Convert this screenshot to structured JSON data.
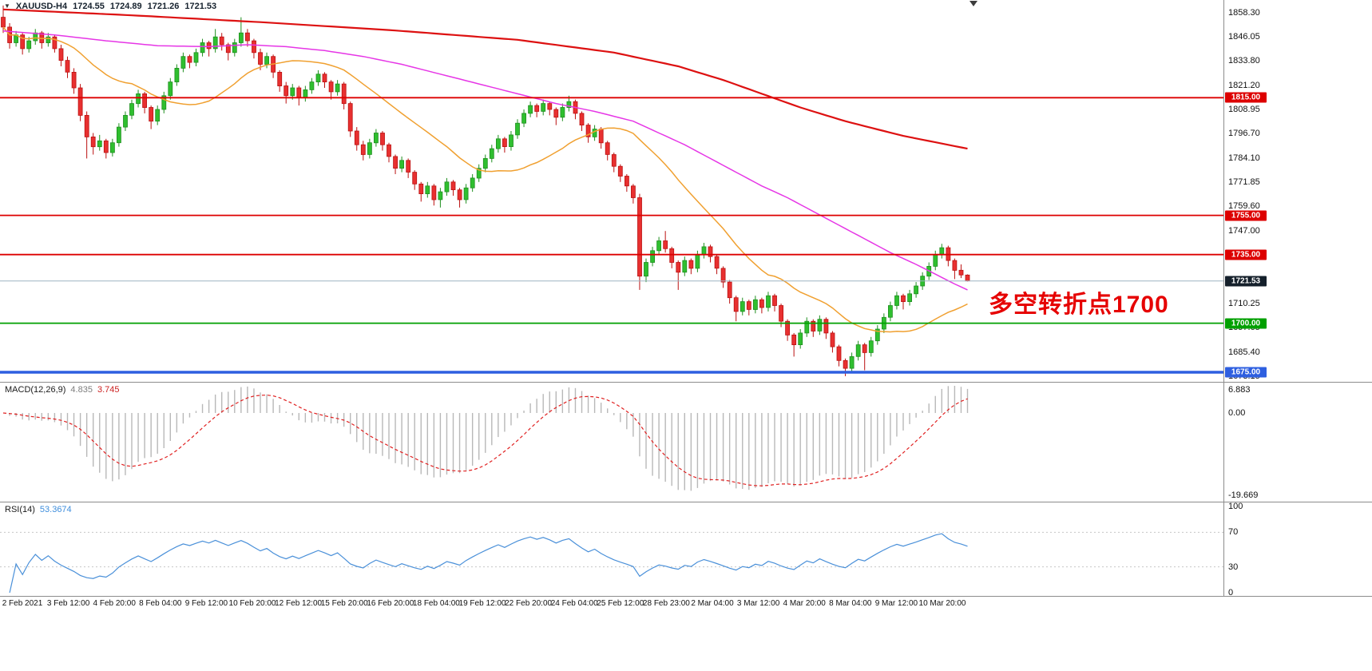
{
  "header": {
    "symbol": "XAUUSD-H4",
    "open": "1724.55",
    "high": "1724.89",
    "low": "1721.26",
    "close": "1721.53"
  },
  "annotation": {
    "text": "多空转折点1700",
    "color": "#e60000"
  },
  "price_axis": {
    "ticks": [
      "1858.30",
      "1846.05",
      "1833.80",
      "1821.20",
      "1808.95",
      "1796.70",
      "1784.10",
      "1771.85",
      "1759.60",
      "1747.00",
      "1710.25",
      "1697.65",
      "1685.40",
      "1673.15"
    ]
  },
  "time_axis": {
    "labels": [
      "2 Feb 2021",
      "3 Feb 12:00",
      "4 Feb 20:00",
      "8 Feb 04:00",
      "9 Feb 12:00",
      "10 Feb 20:00",
      "12 Feb 12:00",
      "15 Feb 20:00",
      "16 Feb 20:00",
      "18 Feb 04:00",
      "19 Feb 12:00",
      "22 Feb 20:00",
      "24 Feb 04:00",
      "25 Feb 12:00",
      "28 Feb 23:00",
      "2 Mar 04:00",
      "3 Mar 12:00",
      "4 Mar 20:00",
      "8 Mar 04:00",
      "9 Mar 12:00",
      "10 Mar 20:00"
    ]
  },
  "chart_data": {
    "type": "candlestick",
    "symbol": "XAUUSD",
    "timeframe": "H4",
    "ylim": [
      1673,
      1865
    ],
    "current_price": {
      "value": 1721.53,
      "label": "1721.53",
      "line_color": "#9db3c2",
      "badge_color": "#15202b"
    },
    "levels": [
      {
        "price": 1815.0,
        "label": "1815.00",
        "color": "#dd0000",
        "line_width": 1.8
      },
      {
        "price": 1755.0,
        "label": "1755.00",
        "color": "#dd0000",
        "line_width": 1.8
      },
      {
        "price": 1735.0,
        "label": "1735.00",
        "color": "#dd0000",
        "line_width": 1.8
      },
      {
        "price": 1700.0,
        "label": "1700.00",
        "color": "#00a000",
        "line_width": 1.8
      },
      {
        "price": 1675.0,
        "label": "1675.00",
        "color": "#2e5fe0",
        "line_width": 3.5
      }
    ],
    "style": {
      "up_fill": "#2fbf2f",
      "up_stroke": "#1f8f1f",
      "down_fill": "#e83030",
      "down_stroke": "#bb1111"
    },
    "moving_averages": {
      "fast": {
        "color": "#f0a030",
        "type": "sma",
        "period": 21
      },
      "mid": {
        "color": "#e636e6",
        "points": [
          [
            0,
            1849
          ],
          [
            8,
            1847
          ],
          [
            16,
            1844
          ],
          [
            24,
            1841.5
          ],
          [
            32,
            1841
          ],
          [
            38,
            1842
          ],
          [
            44,
            1841
          ],
          [
            50,
            1839
          ],
          [
            56,
            1836
          ],
          [
            62,
            1832
          ],
          [
            68,
            1827
          ],
          [
            74,
            1822
          ],
          [
            80,
            1817
          ],
          [
            86,
            1812
          ],
          [
            92,
            1808
          ],
          [
            98,
            1803
          ],
          [
            102,
            1797
          ],
          [
            106,
            1791
          ],
          [
            110,
            1784
          ],
          [
            114,
            1777
          ],
          [
            118,
            1770
          ],
          [
            122,
            1764
          ],
          [
            126,
            1757
          ],
          [
            130,
            1750
          ],
          [
            134,
            1743
          ],
          [
            138,
            1736
          ],
          [
            142,
            1730
          ],
          [
            145,
            1725
          ],
          [
            148,
            1720
          ],
          [
            150,
            1717
          ]
        ]
      },
      "slow": {
        "color": "#dd1111",
        "points": [
          [
            0,
            1860
          ],
          [
            20,
            1857
          ],
          [
            40,
            1853.5
          ],
          [
            60,
            1849.5
          ],
          [
            80,
            1844.5
          ],
          [
            95,
            1838
          ],
          [
            105,
            1831
          ],
          [
            112,
            1824
          ],
          [
            118,
            1817
          ],
          [
            124,
            1810
          ],
          [
            131,
            1803
          ],
          [
            140,
            1795.5
          ],
          [
            150,
            1789
          ]
        ]
      }
    },
    "indicators": {
      "macd": {
        "label": "MACD(12,26,9)",
        "value_main": "4.835",
        "value_signal": "3.745",
        "fast": 12,
        "slow": 26,
        "signal": 9,
        "histogram_color": "#b8b8b8",
        "signal_color": "#e02020",
        "scale": {
          "max": "6.883",
          "zero": "0.00",
          "min": "-19.669"
        }
      },
      "rsi": {
        "label": "RSI(14)",
        "value": "53.3674",
        "period": 14,
        "line_color": "#4a90d9",
        "level_lines": [
          70,
          30
        ],
        "scale": [
          "100",
          "70",
          "30",
          "0"
        ]
      }
    },
    "ohlc": [
      [
        1856,
        1862,
        1848,
        1851
      ],
      [
        1851,
        1853,
        1840,
        1843
      ],
      [
        1843,
        1849,
        1841,
        1847
      ],
      [
        1847,
        1848,
        1837,
        1840
      ],
      [
        1840,
        1846,
        1838,
        1844
      ],
      [
        1844,
        1850,
        1842,
        1848
      ],
      [
        1848,
        1849,
        1840,
        1843
      ],
      [
        1843,
        1848,
        1841,
        1846
      ],
      [
        1846,
        1847,
        1838,
        1840
      ],
      [
        1840,
        1842,
        1831,
        1834
      ],
      [
        1834,
        1836,
        1825,
        1828
      ],
      [
        1828,
        1830,
        1817,
        1820
      ],
      [
        1820,
        1822,
        1803,
        1806
      ],
      [
        1806,
        1808,
        1784,
        1795
      ],
      [
        1795,
        1797,
        1786,
        1790
      ],
      [
        1790,
        1796,
        1788,
        1793
      ],
      [
        1793,
        1794,
        1784,
        1787
      ],
      [
        1787,
        1794,
        1785,
        1792
      ],
      [
        1792,
        1802,
        1790,
        1800
      ],
      [
        1800,
        1808,
        1798,
        1806
      ],
      [
        1806,
        1814,
        1804,
        1812
      ],
      [
        1812,
        1819,
        1810,
        1817
      ],
      [
        1817,
        1818,
        1807,
        1810
      ],
      [
        1810,
        1811,
        1799,
        1803
      ],
      [
        1803,
        1811,
        1801,
        1809
      ],
      [
        1809,
        1818,
        1807,
        1816
      ],
      [
        1816,
        1825,
        1814,
        1823
      ],
      [
        1823,
        1832,
        1821,
        1830
      ],
      [
        1830,
        1838,
        1828,
        1836
      ],
      [
        1836,
        1837,
        1830,
        1833
      ],
      [
        1833,
        1840,
        1831,
        1838
      ],
      [
        1838,
        1845,
        1836,
        1843
      ],
      [
        1843,
        1844,
        1836,
        1840
      ],
      [
        1840,
        1850,
        1838,
        1846
      ],
      [
        1846,
        1848,
        1839,
        1842
      ],
      [
        1842,
        1843,
        1834,
        1838
      ],
      [
        1838,
        1845,
        1836,
        1843
      ],
      [
        1843,
        1856,
        1841,
        1848
      ],
      [
        1848,
        1850,
        1841,
        1844
      ],
      [
        1844,
        1845,
        1835,
        1838
      ],
      [
        1838,
        1840,
        1829,
        1832
      ],
      [
        1832,
        1838,
        1830,
        1836
      ],
      [
        1836,
        1837,
        1825,
        1828
      ],
      [
        1828,
        1829,
        1818,
        1821
      ],
      [
        1821,
        1823,
        1812,
        1816
      ],
      [
        1816,
        1822,
        1814,
        1820
      ],
      [
        1820,
        1821,
        1811,
        1815
      ],
      [
        1815,
        1821,
        1813,
        1819
      ],
      [
        1819,
        1825,
        1817,
        1823
      ],
      [
        1823,
        1829,
        1821,
        1827
      ],
      [
        1827,
        1828,
        1820,
        1823
      ],
      [
        1823,
        1824,
        1814,
        1818
      ],
      [
        1818,
        1824,
        1816,
        1822
      ],
      [
        1822,
        1823,
        1809,
        1812
      ],
      [
        1812,
        1813,
        1795,
        1798
      ],
      [
        1798,
        1800,
        1788,
        1791
      ],
      [
        1791,
        1793,
        1783,
        1786
      ],
      [
        1786,
        1794,
        1784,
        1792
      ],
      [
        1792,
        1799,
        1790,
        1797
      ],
      [
        1797,
        1798,
        1788,
        1791
      ],
      [
        1791,
        1792,
        1782,
        1785
      ],
      [
        1785,
        1786,
        1776,
        1779
      ],
      [
        1779,
        1785,
        1777,
        1783
      ],
      [
        1783,
        1784,
        1774,
        1777
      ],
      [
        1777,
        1778,
        1768,
        1771
      ],
      [
        1771,
        1772,
        1762,
        1766
      ],
      [
        1766,
        1772,
        1764,
        1770
      ],
      [
        1770,
        1771,
        1760,
        1763
      ],
      [
        1763,
        1769,
        1759,
        1767
      ],
      [
        1767,
        1774,
        1765,
        1772
      ],
      [
        1772,
        1773,
        1765,
        1768
      ],
      [
        1768,
        1769,
        1759,
        1763
      ],
      [
        1763,
        1771,
        1761,
        1769
      ],
      [
        1769,
        1776,
        1767,
        1774
      ],
      [
        1774,
        1781,
        1772,
        1779
      ],
      [
        1779,
        1786,
        1777,
        1784
      ],
      [
        1784,
        1791,
        1782,
        1789
      ],
      [
        1789,
        1796,
        1787,
        1794
      ],
      [
        1794,
        1795,
        1787,
        1790
      ],
      [
        1790,
        1798,
        1788,
        1796
      ],
      [
        1796,
        1804,
        1794,
        1802
      ],
      [
        1802,
        1809,
        1800,
        1807
      ],
      [
        1807,
        1813,
        1805,
        1811
      ],
      [
        1811,
        1812,
        1805,
        1808
      ],
      [
        1808,
        1814,
        1806,
        1812
      ],
      [
        1812,
        1813,
        1806,
        1809
      ],
      [
        1809,
        1810,
        1801,
        1805
      ],
      [
        1805,
        1812,
        1803,
        1810
      ],
      [
        1810,
        1816,
        1808,
        1813
      ],
      [
        1813,
        1814,
        1804,
        1807
      ],
      [
        1807,
        1808,
        1798,
        1801
      ],
      [
        1801,
        1802,
        1792,
        1795
      ],
      [
        1795,
        1801,
        1793,
        1799
      ],
      [
        1799,
        1800,
        1789,
        1792
      ],
      [
        1792,
        1793,
        1783,
        1786
      ],
      [
        1786,
        1787,
        1777,
        1780
      ],
      [
        1780,
        1781,
        1772,
        1775
      ],
      [
        1775,
        1776,
        1767,
        1770
      ],
      [
        1770,
        1771,
        1761,
        1764
      ],
      [
        1764,
        1766,
        1717,
        1724
      ],
      [
        1724,
        1733,
        1721,
        1731
      ],
      [
        1731,
        1739,
        1729,
        1737
      ],
      [
        1737,
        1744,
        1735,
        1742
      ],
      [
        1742,
        1747,
        1736,
        1738
      ],
      [
        1738,
        1739,
        1728,
        1731
      ],
      [
        1731,
        1732,
        1717,
        1726
      ],
      [
        1726,
        1734,
        1724,
        1732
      ],
      [
        1732,
        1733,
        1725,
        1728
      ],
      [
        1728,
        1737,
        1726,
        1735
      ],
      [
        1735,
        1741,
        1733,
        1739
      ],
      [
        1739,
        1740,
        1731,
        1734
      ],
      [
        1734,
        1735,
        1725,
        1728
      ],
      [
        1728,
        1729,
        1718,
        1721
      ],
      [
        1721,
        1722,
        1710,
        1713
      ],
      [
        1713,
        1714,
        1701,
        1706
      ],
      [
        1706,
        1713,
        1704,
        1711
      ],
      [
        1711,
        1712,
        1704,
        1707
      ],
      [
        1707,
        1714,
        1705,
        1712
      ],
      [
        1712,
        1713,
        1705,
        1708
      ],
      [
        1708,
        1716,
        1706,
        1714
      ],
      [
        1714,
        1715,
        1706,
        1709
      ],
      [
        1709,
        1710,
        1698,
        1701
      ],
      [
        1701,
        1702,
        1691,
        1694
      ],
      [
        1694,
        1695,
        1683,
        1689
      ],
      [
        1689,
        1697,
        1687,
        1695
      ],
      [
        1695,
        1703,
        1693,
        1701
      ],
      [
        1701,
        1702,
        1693,
        1696
      ],
      [
        1696,
        1704,
        1694,
        1702
      ],
      [
        1702,
        1703,
        1692,
        1695
      ],
      [
        1695,
        1696,
        1685,
        1688
      ],
      [
        1688,
        1689,
        1678,
        1681
      ],
      [
        1681,
        1682,
        1673,
        1677
      ],
      [
        1677,
        1685,
        1675,
        1683
      ],
      [
        1683,
        1691,
        1681,
        1689
      ],
      [
        1689,
        1690,
        1676,
        1685
      ],
      [
        1685,
        1693,
        1683,
        1691
      ],
      [
        1691,
        1699,
        1689,
        1697
      ],
      [
        1697,
        1705,
        1695,
        1703
      ],
      [
        1703,
        1711,
        1701,
        1709
      ],
      [
        1709,
        1716,
        1707,
        1714
      ],
      [
        1714,
        1715,
        1707,
        1711
      ],
      [
        1711,
        1717,
        1709,
        1715
      ],
      [
        1715,
        1721,
        1713,
        1719
      ],
      [
        1719,
        1726,
        1717,
        1724
      ],
      [
        1724,
        1731,
        1722,
        1729
      ],
      [
        1729,
        1737,
        1727,
        1735
      ],
      [
        1735,
        1740.5,
        1733,
        1738.5
      ],
      [
        1738.5,
        1739.5,
        1729,
        1732
      ],
      [
        1732,
        1733,
        1722.5,
        1727
      ],
      [
        1727,
        1730,
        1723,
        1724.6
      ],
      [
        1724.55,
        1724.89,
        1721.26,
        1721.53
      ]
    ]
  }
}
